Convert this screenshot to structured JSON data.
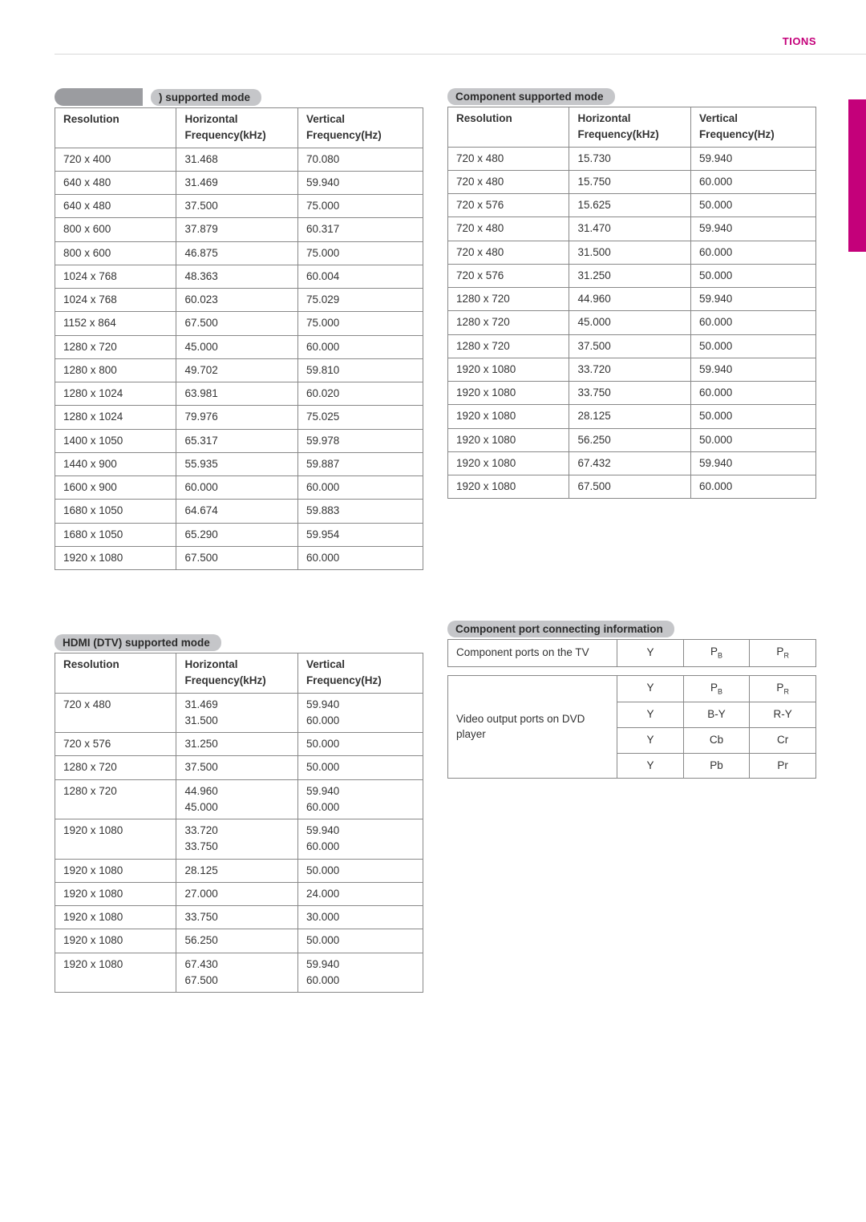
{
  "accent_color": "#c4007a",
  "header_right": "TIONS",
  "tables": {
    "pc": {
      "title": ") supported mode",
      "headers": [
        "Resolution",
        "Horizontal Frequency(kHz)",
        "Vertical Frequency(Hz)"
      ],
      "rows": [
        [
          "720 x 400",
          "31.468",
          "70.080"
        ],
        [
          "640 x 480",
          "31.469",
          "59.940"
        ],
        [
          "640 x 480",
          "37.500",
          "75.000"
        ],
        [
          "800 x 600",
          "37.879",
          "60.317"
        ],
        [
          "800 x 600",
          "46.875",
          "75.000"
        ],
        [
          "1024 x 768",
          "48.363",
          "60.004"
        ],
        [
          "1024 x 768",
          "60.023",
          "75.029"
        ],
        [
          "1152 x 864",
          "67.500",
          "75.000"
        ],
        [
          "1280 x 720",
          "45.000",
          "60.000"
        ],
        [
          "1280 x 800",
          "49.702",
          "59.810"
        ],
        [
          "1280 x 1024",
          "63.981",
          "60.020"
        ],
        [
          "1280 x 1024",
          "79.976",
          "75.025"
        ],
        [
          "1400 x 1050",
          "65.317",
          "59.978"
        ],
        [
          "1440 x 900",
          "55.935",
          "59.887"
        ],
        [
          "1600 x 900",
          "60.000",
          "60.000"
        ],
        [
          "1680 x 1050",
          "64.674",
          "59.883"
        ],
        [
          "1680 x 1050",
          "65.290",
          "59.954"
        ],
        [
          "1920 x 1080",
          "67.500",
          "60.000"
        ]
      ]
    },
    "hdmi": {
      "title": "HDMI (DTV) supported mode",
      "headers": [
        "Resolution",
        "Horizontal Frequency(kHz)",
        "Vertical Frequency(Hz)"
      ],
      "rows": [
        [
          "720 x 480",
          "31.469\n31.500",
          "59.940\n60.000"
        ],
        [
          "720 x 576",
          "31.250",
          "50.000"
        ],
        [
          "1280 x 720",
          "37.500",
          "50.000"
        ],
        [
          "1280 x 720",
          "44.960\n45.000",
          "59.940\n60.000"
        ],
        [
          "1920 x 1080",
          "33.720\n33.750",
          "59.940\n60.000"
        ],
        [
          "1920 x 1080",
          "28.125",
          "50.000"
        ],
        [
          "1920 x 1080",
          "27.000",
          "24.000"
        ],
        [
          "1920 x 1080",
          "33.750",
          "30.000"
        ],
        [
          "1920 x 1080",
          "56.250",
          "50.000"
        ],
        [
          "1920 x 1080",
          "67.430\n67.500",
          "59.940\n60.000"
        ]
      ]
    },
    "component": {
      "title": "Component supported mode",
      "headers": [
        "Resolution",
        "Horizontal Frequency(kHz)",
        "Vertical Frequency(Hz)"
      ],
      "rows": [
        [
          "720 x 480",
          "15.730",
          "59.940"
        ],
        [
          "720 x 480",
          "15.750",
          "60.000"
        ],
        [
          "720 x 576",
          "15.625",
          "50.000"
        ],
        [
          "720 x 480",
          "31.470",
          "59.940"
        ],
        [
          "720 x 480",
          "31.500",
          "60.000"
        ],
        [
          "720 x 576",
          "31.250",
          "50.000"
        ],
        [
          "1280 x 720",
          "44.960",
          "59.940"
        ],
        [
          "1280 x 720",
          "45.000",
          "60.000"
        ],
        [
          "1280 x 720",
          "37.500",
          "50.000"
        ],
        [
          "1920 x 1080",
          "33.720",
          "59.940"
        ],
        [
          "1920 x 1080",
          "33.750",
          "60.000"
        ],
        [
          "1920 x 1080",
          "28.125",
          "50.000"
        ],
        [
          "1920 x 1080",
          "56.250",
          "50.000"
        ],
        [
          "1920 x 1080",
          "67.432",
          "59.940"
        ],
        [
          "1920 x 1080",
          "67.500",
          "60.000"
        ]
      ]
    }
  },
  "port_info": {
    "title": "Component port connecting information",
    "tv_label": "Component ports on the TV",
    "tv_cols": [
      "Y",
      "P|B",
      "P|R"
    ],
    "dvd_label": "Video output ports on DVD player",
    "dvd_rows": [
      [
        "Y",
        "P|B",
        "P|R"
      ],
      [
        "Y",
        "B-Y",
        "R-Y"
      ],
      [
        "Y",
        "Cb",
        "Cr"
      ],
      [
        "Y",
        "Pb",
        "Pr"
      ]
    ]
  }
}
